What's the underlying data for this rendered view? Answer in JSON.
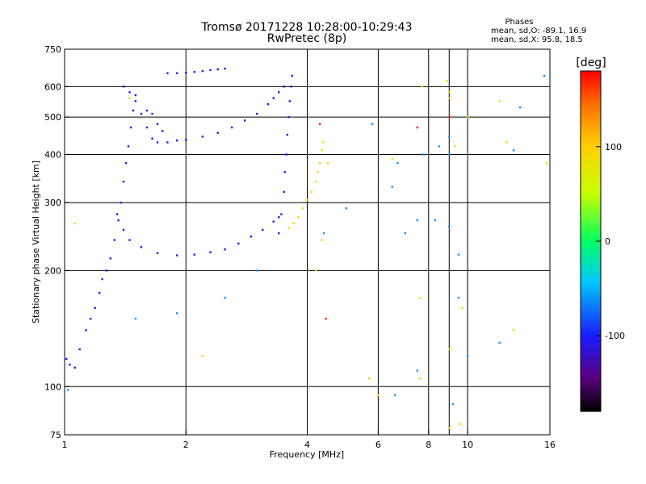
{
  "header": {
    "title_line1": "Tromsø 20171228 10:28:00-10:29:43",
    "title_line2": "RwPretec (8p)",
    "phase_title": "Phases",
    "phase_o": "mean, sd,O: -89.1, 16.9",
    "phase_x": "mean, sd,X:  95.8, 18.5"
  },
  "colorbar": {
    "unit_label": "[deg]",
    "ticks": [
      "100",
      "0",
      "-100"
    ],
    "tick_values": [
      100,
      0,
      -100
    ],
    "range": [
      -180,
      180
    ]
  },
  "chart_data": {
    "type": "scatter",
    "xlabel": "Frequency [MHz]",
    "ylabel": "Stationary phase Virtual Height [km]",
    "x_scale": "log",
    "y_scale": "log",
    "xlim": [
      1,
      16
    ],
    "ylim": [
      75,
      750
    ],
    "grid": true,
    "x_ticks": [
      1,
      2,
      4,
      6,
      8,
      10,
      16
    ],
    "x_tick_labels": [
      "1",
      "2",
      "4",
      "6",
      "8",
      "10",
      "16"
    ],
    "x_minor_ticks": [
      9
    ],
    "y_ticks": [
      75,
      100,
      200,
      300,
      400,
      500,
      600,
      750
    ],
    "y_tick_labels": [
      "75",
      "100",
      "200",
      "300",
      "400",
      "500",
      "600",
      "750"
    ],
    "traces": [
      {
        "name": "",
        "phase": -100,
        "points": [
          [
            1.01,
            118
          ],
          [
            1.03,
            114
          ],
          [
            1.06,
            112
          ],
          [
            1.09,
            125
          ],
          [
            1.13,
            140
          ],
          [
            1.16,
            150
          ],
          [
            1.19,
            160
          ],
          [
            1.22,
            175
          ],
          [
            1.24,
            190
          ],
          [
            1.27,
            200
          ],
          [
            1.3,
            215
          ],
          [
            1.33,
            240
          ],
          [
            1.36,
            270
          ],
          [
            1.38,
            300
          ],
          [
            1.4,
            340
          ],
          [
            1.42,
            380
          ],
          [
            1.44,
            420
          ],
          [
            1.46,
            470
          ],
          [
            1.48,
            520
          ],
          [
            1.5,
            570
          ]
        ]
      },
      {
        "name": "",
        "phase": -100,
        "points": [
          [
            1.4,
            600
          ],
          [
            1.45,
            580
          ],
          [
            1.5,
            550
          ],
          [
            1.55,
            510
          ],
          [
            1.6,
            470
          ],
          [
            1.65,
            440
          ],
          [
            1.7,
            430
          ],
          [
            1.8,
            430
          ],
          [
            1.9,
            435
          ],
          [
            2.0,
            437
          ],
          [
            2.2,
            445
          ],
          [
            2.4,
            455
          ],
          [
            2.6,
            470
          ],
          [
            2.8,
            490
          ],
          [
            3.0,
            510
          ],
          [
            3.2,
            540
          ],
          [
            3.3,
            560
          ],
          [
            3.4,
            580
          ],
          [
            3.5,
            600
          ]
        ]
      },
      {
        "name": "",
        "phase": -100,
        "points": [
          [
            1.6,
            520
          ],
          [
            1.65,
            510
          ],
          [
            1.7,
            480
          ],
          [
            1.75,
            460
          ]
        ]
      },
      {
        "name": "",
        "phase": -100,
        "points": [
          [
            1.35,
            280
          ],
          [
            1.4,
            255
          ],
          [
            1.45,
            240
          ],
          [
            1.55,
            230
          ],
          [
            1.7,
            222
          ],
          [
            1.9,
            219
          ],
          [
            2.1,
            220
          ],
          [
            2.3,
            223
          ],
          [
            2.5,
            227
          ],
          [
            2.7,
            235
          ],
          [
            2.9,
            245
          ],
          [
            3.1,
            255
          ],
          [
            3.3,
            268
          ],
          [
            3.4,
            275
          ]
        ]
      },
      {
        "name": "",
        "phase": -100,
        "points": [
          [
            3.4,
            250
          ],
          [
            3.45,
            280
          ],
          [
            3.5,
            320
          ],
          [
            3.52,
            360
          ],
          [
            3.55,
            400
          ],
          [
            3.57,
            450
          ],
          [
            3.6,
            500
          ],
          [
            3.62,
            550
          ],
          [
            3.65,
            600
          ],
          [
            3.67,
            640
          ]
        ]
      },
      {
        "name": "",
        "phase": 90,
        "points": [
          [
            3.6,
            258
          ],
          [
            3.7,
            265
          ],
          [
            3.8,
            275
          ],
          [
            3.9,
            290
          ],
          [
            4.0,
            305
          ],
          [
            4.1,
            320
          ],
          [
            4.2,
            340
          ],
          [
            4.25,
            360
          ],
          [
            4.3,
            380
          ],
          [
            4.35,
            410
          ],
          [
            4.38,
            430
          ]
        ]
      },
      {
        "name": "",
        "phase": -100,
        "points": [
          [
            1.8,
            650
          ],
          [
            1.9,
            650
          ],
          [
            2.0,
            652
          ],
          [
            2.1,
            655
          ],
          [
            2.2,
            658
          ],
          [
            2.3,
            662
          ],
          [
            2.4,
            665
          ],
          [
            2.5,
            668
          ]
        ]
      },
      {
        "name": "",
        "phase": -60,
        "points": [
          [
            1.02,
            98
          ],
          [
            1.5,
            150
          ],
          [
            1.9,
            155
          ],
          [
            2.5,
            170
          ],
          [
            3.0,
            200
          ],
          [
            4.4,
            250
          ],
          [
            5.0,
            290
          ],
          [
            6.5,
            330
          ],
          [
            7.0,
            250
          ],
          [
            7.5,
            270
          ],
          [
            8.3,
            270
          ],
          [
            9.0,
            260
          ],
          [
            9.5,
            170
          ],
          [
            10.0,
            120
          ],
          [
            9.2,
            90
          ],
          [
            12.0,
            130
          ],
          [
            13.0,
            410
          ],
          [
            13.5,
            530
          ],
          [
            15.5,
            640
          ],
          [
            6.6,
            95
          ],
          [
            7.5,
            110
          ],
          [
            9.0,
            400
          ],
          [
            9.0,
            445
          ],
          [
            9.5,
            220
          ],
          [
            8.5,
            420
          ],
          [
            7.8,
            400
          ],
          [
            6.7,
            380
          ],
          [
            5.8,
            480
          ]
        ]
      },
      {
        "name": "",
        "phase": 100,
        "points": [
          [
            1.45,
            560
          ],
          [
            2.2,
            120
          ],
          [
            4.2,
            200
          ],
          [
            4.35,
            240
          ],
          [
            4.5,
            380
          ],
          [
            5.7,
            105
          ],
          [
            6.0,
            95
          ],
          [
            6.5,
            390
          ],
          [
            7.6,
            105
          ],
          [
            7.6,
            170
          ],
          [
            7.7,
            600
          ],
          [
            8.9,
            620
          ],
          [
            9.0,
            560
          ],
          [
            9.0,
            580
          ],
          [
            9.3,
            420
          ],
          [
            9.6,
            80
          ],
          [
            9.0,
            78
          ],
          [
            10.0,
            500
          ],
          [
            12.0,
            550
          ],
          [
            12.5,
            430
          ],
          [
            13.0,
            140
          ],
          [
            15.7,
            380
          ]
        ]
      },
      {
        "name": "",
        "phase": 170,
        "points": [
          [
            4.3,
            480
          ],
          [
            4.45,
            150
          ],
          [
            7.5,
            470
          ],
          [
            9.0,
            500
          ]
        ]
      },
      {
        "name": "",
        "phase": 40,
        "points": [
          [
            1.06,
            265
          ],
          [
            9.0,
            125
          ],
          [
            9.7,
            160
          ]
        ]
      }
    ]
  }
}
